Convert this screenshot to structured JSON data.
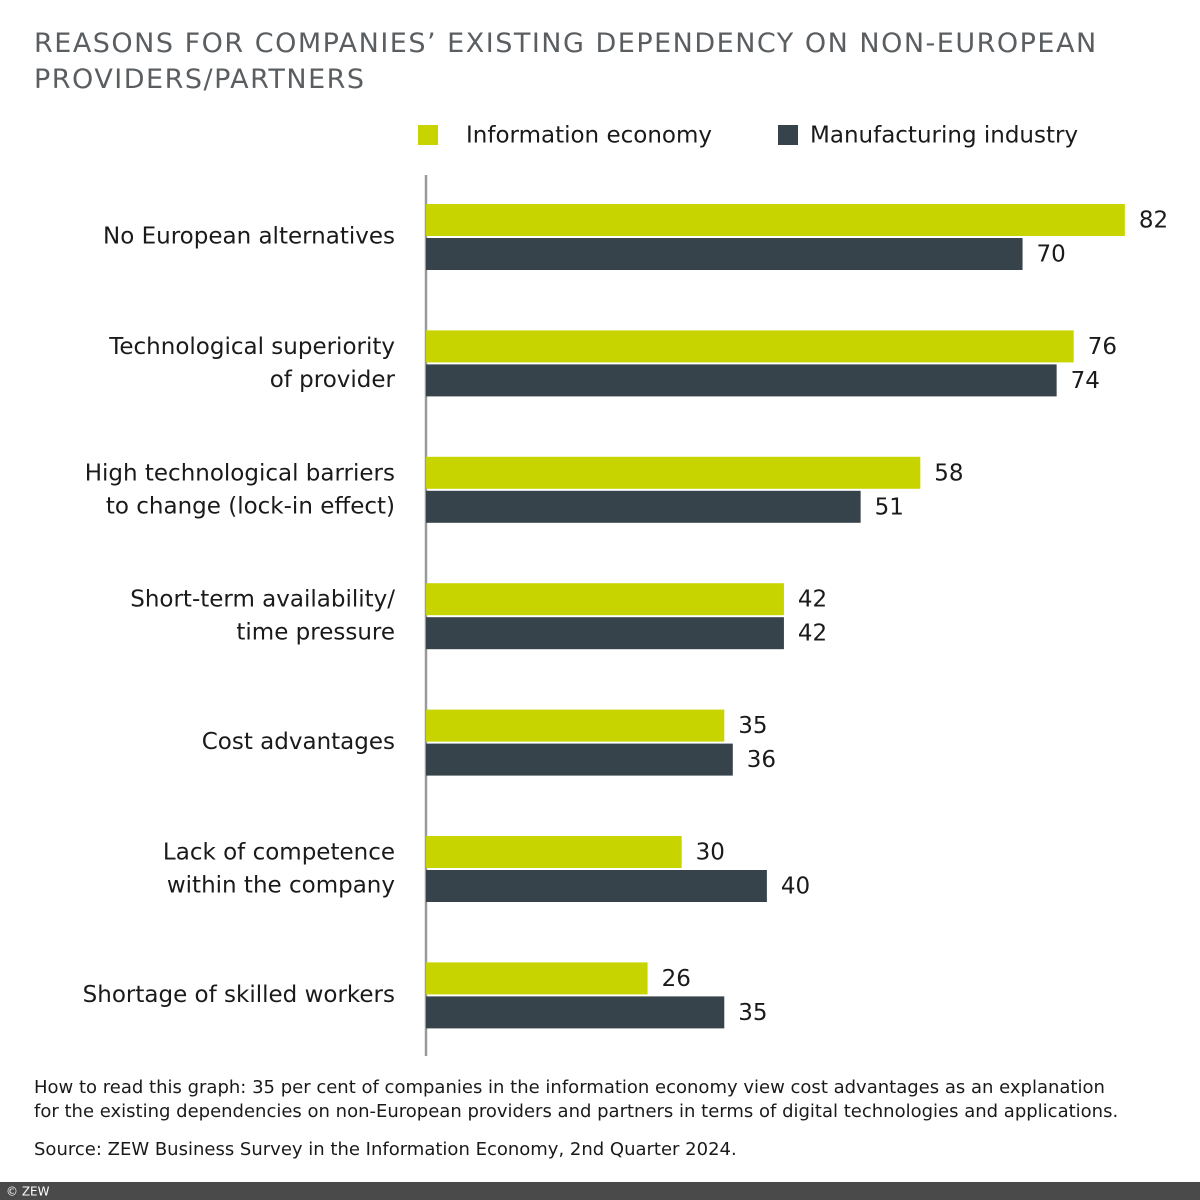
{
  "chart_data": {
    "type": "barh",
    "title": "REASONS FOR COMPANIES’ EXISTING DEPENDENCY ON NON-EUROPEAN\nPROVIDERS/PARTNERS",
    "categories": [
      "No European alternatives",
      "Technological superiority\nof provider",
      "High technological barriers\nto change (lock-in effect)",
      "Short-term availability/\ntime pressure",
      "Cost advantages",
      "Lack of competence\nwithin the company",
      "Shortage of skilled workers"
    ],
    "series": [
      {
        "name": "Information economy",
        "color": "#c8d400",
        "values": [
          82,
          76,
          58,
          42,
          35,
          30,
          26
        ]
      },
      {
        "name": "Manufacturing industry",
        "color": "#37434a",
        "values": [
          70,
          74,
          51,
          42,
          36,
          40,
          35
        ]
      }
    ],
    "xlim": [
      0,
      90
    ],
    "note": "How to read this graph: 35 per cent of companies in the information economy view cost advantages as an explanation\nfor the existing dependencies on non-European providers and partners in terms of digital technologies and applications.",
    "source": "Source: ZEW Business Survey in the Information Economy, 2nd Quarter 2024.",
    "copyright": "© ZEW"
  }
}
